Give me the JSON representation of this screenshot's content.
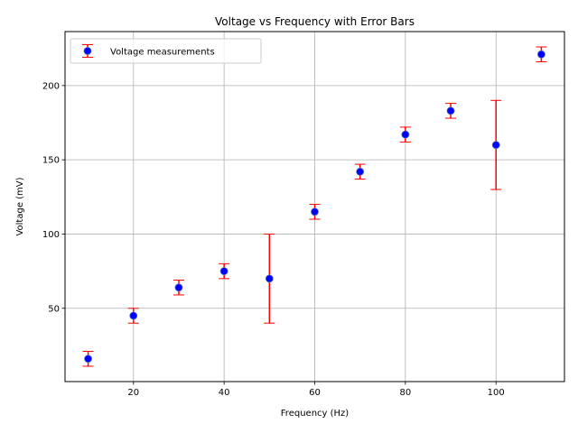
{
  "chart_data": {
    "type": "scatter",
    "title": "Voltage vs Frequency with Error Bars",
    "xlabel": "Frequency (Hz)",
    "ylabel": "Voltage (mV)",
    "xlim": [
      4.9,
      115.1
    ],
    "ylim": [
      0.65,
      236.35
    ],
    "xticks": [
      20,
      40,
      60,
      80,
      100
    ],
    "yticks": [
      50,
      100,
      150,
      200
    ],
    "grid": true,
    "legend_position": "top-left",
    "series": [
      {
        "name": "Voltage measurements",
        "marker_color": "#0000ff",
        "error_color": "#ff0000",
        "x": [
          10,
          20,
          30,
          40,
          50,
          60,
          70,
          80,
          90,
          100,
          110
        ],
        "y": [
          16,
          45,
          64,
          75,
          70,
          115,
          142,
          167,
          183,
          160,
          221
        ],
        "yerr": [
          5,
          5,
          5,
          5,
          30,
          5,
          5,
          5,
          5,
          30,
          5
        ]
      }
    ]
  }
}
